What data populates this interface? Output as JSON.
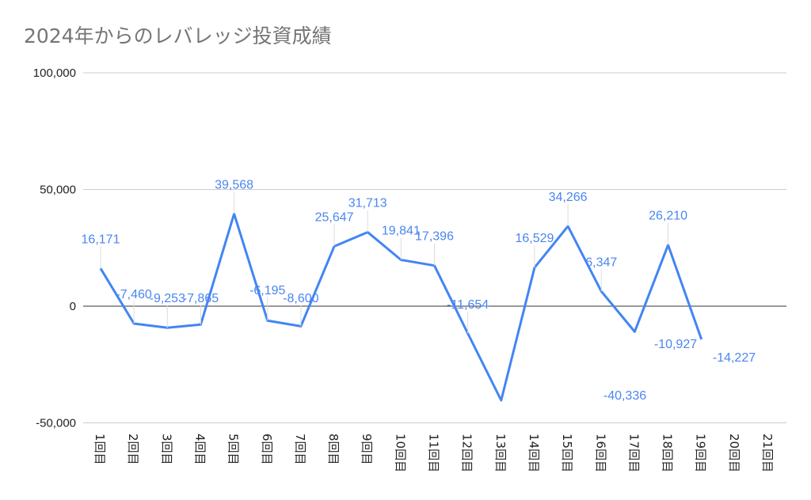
{
  "chart_data": {
    "type": "line",
    "title": "2024年からのレバレッジ投資成績",
    "categories": [
      "1回目",
      "2回目",
      "3回目",
      "4回目",
      "5回目",
      "6回目",
      "7回目",
      "8回目",
      "9回目",
      "10回目",
      "11回目",
      "12回目",
      "13回目",
      "14回目",
      "15回目",
      "16回目",
      "17回目",
      "18回目",
      "19回目",
      "20回目",
      "21回目"
    ],
    "series": [
      {
        "values": [
          16171,
          -7460,
          -9253,
          -7865,
          39568,
          -6195,
          -8600,
          25647,
          31713,
          19841,
          17396,
          -11654,
          -40336,
          16529,
          34266,
          6347,
          -10927,
          26210,
          -14227,
          null,
          null
        ]
      }
    ],
    "data_labels": [
      "16,171",
      "-7,460",
      "-9,253",
      "-7,865",
      "39,568",
      "-6,195",
      "-8,600",
      "25,647",
      "31,713",
      "19,841",
      "17,396",
      "-11,654",
      "-40,336",
      "16,529",
      "34,266",
      "6,347",
      "-10,927",
      "26,210",
      "-14,227"
    ],
    "ylim": [
      -50000,
      100000
    ],
    "yticks": [
      "100,000",
      "50,000",
      "0",
      "-50,000"
    ],
    "ytick_values": [
      100000,
      50000,
      0,
      -50000
    ],
    "grid": true,
    "line_color": "#4285f4"
  }
}
